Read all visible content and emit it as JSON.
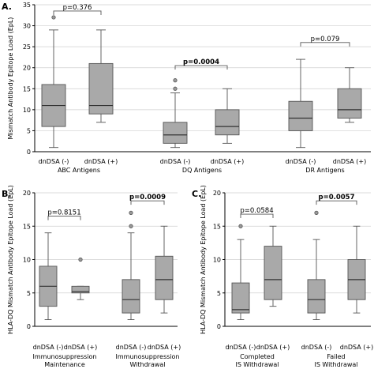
{
  "chart_data": [
    {
      "panel": "A.",
      "type": "box",
      "ylabel": "Mismatch Antibody Epitope Load (EpL)",
      "ylim": [
        0,
        35
      ],
      "yticks": [
        0,
        5,
        10,
        15,
        20,
        25,
        30,
        35
      ],
      "categories": [
        "dnDSA (-)",
        "dnDSA (+)",
        "dnDSA (-)",
        "dnDSA (+)",
        "dnDSA (-)",
        "dnDSA (+)"
      ],
      "groups": [
        "ABC Antigens",
        "DQ Antigens",
        "DR Antigens"
      ],
      "boxes": [
        {
          "min": 1,
          "q1": 6,
          "median": 11,
          "q3": 16,
          "max": 29,
          "outliers": [
            32
          ]
        },
        {
          "min": 7,
          "q1": 9,
          "median": 11,
          "q3": 21,
          "max": 29,
          "outliers": []
        },
        {
          "min": 1,
          "q1": 2,
          "median": 4,
          "q3": 7,
          "max": 14,
          "outliers": [
            15,
            17
          ]
        },
        {
          "min": 2,
          "q1": 4,
          "median": 6,
          "q3": 10,
          "max": 15,
          "outliers": []
        },
        {
          "min": 1,
          "q1": 5,
          "median": 8,
          "q3": 12,
          "max": 22,
          "outliers": []
        },
        {
          "min": 7,
          "q1": 8,
          "median": 10,
          "q3": 15,
          "max": 20,
          "outliers": []
        }
      ],
      "pvalues": [
        {
          "text": "p=0.376",
          "bold": false,
          "pair": [
            0,
            1
          ],
          "y": 33.5
        },
        {
          "text": "p=0.0004",
          "bold": true,
          "pair": [
            2,
            3
          ],
          "y": 20.5
        },
        {
          "text": "p=0.079",
          "bold": false,
          "pair": [
            4,
            5
          ],
          "y": 26
        }
      ]
    },
    {
      "panel": "B.",
      "type": "box",
      "ylabel": "HLA-DQ Mismatch Antibody Epitope Load (EpL)",
      "ylim": [
        0,
        20
      ],
      "yticks": [
        0,
        5,
        10,
        15,
        20
      ],
      "categories": [
        "dnDSA (-)",
        "dnDSA (+)",
        "dnDSA (-)",
        "dnDSA (+)"
      ],
      "groups": [
        "Immunosuppression Maintenance",
        "Immunosuppression Withdrawal"
      ],
      "boxes": [
        {
          "min": 1,
          "q1": 3,
          "median": 6,
          "q3": 9,
          "max": 14,
          "outliers": []
        },
        {
          "min": 4,
          "q1": 5,
          "median": 5.2,
          "q3": 6,
          "max": 6,
          "outliers": [
            10
          ]
        },
        {
          "min": 1,
          "q1": 2,
          "median": 4,
          "q3": 7,
          "max": 14,
          "outliers": [
            15,
            17
          ]
        },
        {
          "min": 2,
          "q1": 4,
          "median": 7,
          "q3": 10.5,
          "max": 15,
          "outliers": []
        }
      ],
      "pvalues": [
        {
          "text": "p=0.8151",
          "bold": false,
          "pair": [
            0,
            1
          ],
          "y": 16.5
        },
        {
          "text": "p=0.0009",
          "bold": true,
          "pair": [
            2,
            3
          ],
          "y": 18.8
        }
      ]
    },
    {
      "panel": "C.",
      "type": "box",
      "ylabel": "HLA-DQ Mismatch Antibody Epitope Load (EpL)",
      "ylim": [
        0,
        20
      ],
      "yticks": [
        0,
        5,
        10,
        15,
        20
      ],
      "categories": [
        "dnDSA (-)",
        "dnDSA (+)",
        "dnDSA (-)",
        "dnDSA (+)"
      ],
      "groups": [
        "Completed IS Withdrawal",
        "Failed IS Withdrawal"
      ],
      "boxes": [
        {
          "min": 1,
          "q1": 2,
          "median": 2.5,
          "q3": 6.5,
          "max": 13,
          "outliers": [
            15
          ]
        },
        {
          "min": 3,
          "q1": 4,
          "median": 7,
          "q3": 12,
          "max": 15,
          "outliers": []
        },
        {
          "min": 1,
          "q1": 2,
          "median": 4,
          "q3": 7,
          "max": 13,
          "outliers": [
            17
          ]
        },
        {
          "min": 2,
          "q1": 4,
          "median": 7,
          "q3": 10,
          "max": 15,
          "outliers": []
        }
      ],
      "pvalues": [
        {
          "text": "p=0.0584",
          "bold": false,
          "pair": [
            0,
            1
          ],
          "y": 16.8
        },
        {
          "text": "p=0.0057",
          "bold": true,
          "pair": [
            2,
            3
          ],
          "y": 18.8
        }
      ]
    }
  ]
}
